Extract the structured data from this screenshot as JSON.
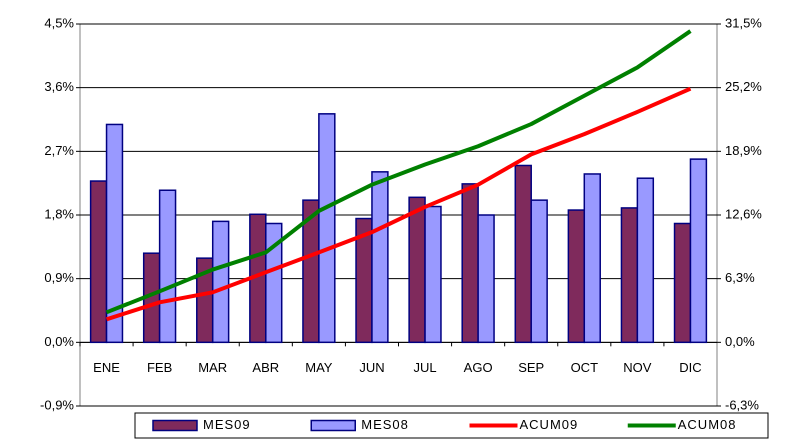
{
  "chart_data": {
    "type": "bar-line",
    "categories": [
      "ENE",
      "FEB",
      "MAR",
      "ABR",
      "MAY",
      "JUN",
      "JUL",
      "AGO",
      "SEP",
      "OCT",
      "NOV",
      "DIC"
    ],
    "series": [
      {
        "name": "MES09",
        "type": "bar",
        "color": "#7f2a5c",
        "values": [
          2.28,
          1.26,
          1.19,
          1.81,
          2.01,
          1.75,
          2.05,
          2.24,
          2.5,
          1.87,
          1.9,
          1.68
        ]
      },
      {
        "name": "MES08",
        "type": "bar",
        "color": "#9999ff",
        "values": [
          3.08,
          2.15,
          1.71,
          1.68,
          3.23,
          2.41,
          1.92,
          1.8,
          2.01,
          2.38,
          2.32,
          2.59
        ]
      },
      {
        "name": "ACUM09",
        "type": "line",
        "axis": "y2",
        "color": "#ff0000",
        "values": [
          2.28,
          3.96,
          4.95,
          6.93,
          8.9,
          10.9,
          13.4,
          15.6,
          18.6,
          20.6,
          22.8,
          25.1
        ]
      },
      {
        "name": "ACUM08",
        "type": "line",
        "axis": "y2",
        "color": "#008000",
        "values": [
          2.97,
          5.05,
          7.2,
          8.9,
          13.0,
          15.6,
          17.6,
          19.4,
          21.6,
          24.4,
          27.2,
          30.8
        ]
      }
    ],
    "ylim": [
      -0.9,
      4.5
    ],
    "yticks": [
      {
        "value": -0.9,
        "label": "-0,9%"
      },
      {
        "value": 0,
        "label": "0,0%"
      },
      {
        "value": 0.9,
        "label": "0,9%"
      },
      {
        "value": 1.8,
        "label": "1,8%"
      },
      {
        "value": 2.7,
        "label": "2,7%"
      },
      {
        "value": 3.6,
        "label": "3,6%"
      },
      {
        "value": 4.5,
        "label": "4,5%"
      }
    ],
    "y2lim": [
      -6.3,
      31.5
    ],
    "y2ticks": [
      {
        "value": -6.3,
        "label": "-6,3%"
      },
      {
        "value": 0,
        "label": "0,0%"
      },
      {
        "value": 6.3,
        "label": "6,3%"
      },
      {
        "value": 12.6,
        "label": "12,6%"
      },
      {
        "value": 18.9,
        "label": "18,9%"
      },
      {
        "value": 25.2,
        "label": "25,2%"
      },
      {
        "value": 31.5,
        "label": "31,5%"
      }
    ],
    "grid": true,
    "legend": "bottom"
  }
}
